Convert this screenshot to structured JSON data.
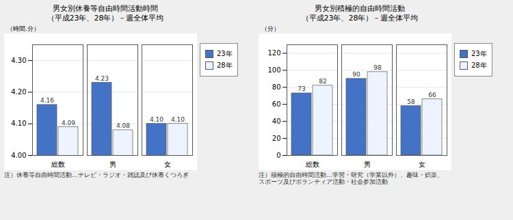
{
  "chart_data": [
    {
      "type": "bar",
      "title": "男女別休養等自由時間活動時間\n（平成23年、28年）－週全体平均",
      "ylabel": "（時間.分）",
      "categories": [
        "総数",
        "男",
        "女"
      ],
      "series": [
        {
          "name": "23年",
          "color": "#4472C4",
          "values": [
            4.16,
            4.23,
            4.1
          ],
          "value_labels": [
            "4.16",
            "4.23",
            "4.10"
          ]
        },
        {
          "name": "28年",
          "color": "#EEF4FF",
          "values": [
            4.09,
            4.08,
            4.1
          ],
          "value_labels": [
            "4.09",
            "4.08",
            "4.10"
          ]
        }
      ],
      "ylim": [
        4.0,
        4.35
      ],
      "yticks": [
        {
          "value": 4.0,
          "label": "4.00"
        },
        {
          "value": 4.1,
          "label": "4.10"
        },
        {
          "value": 4.2,
          "label": "4.20"
        },
        {
          "value": 4.3,
          "label": "4.30"
        }
      ],
      "grid": true,
      "legend": "right",
      "data_labels": true,
      "annotations": [
        "注）休養等自由時間活動…テレビ・ラジオ・雑誌及び休養くつろぎ"
      ]
    },
    {
      "type": "bar",
      "title": "男女別積極的自由時間活動\n（平成23年、28年）－週全体平均",
      "ylabel": "（分）",
      "categories": [
        "総数",
        "男",
        "女"
      ],
      "series": [
        {
          "name": "23年",
          "color": "#4472C4",
          "values": [
            73,
            90,
            58
          ]
        },
        {
          "name": "28年",
          "color": "#EEF4FF",
          "values": [
            82,
            98,
            66
          ]
        }
      ],
      "ylim": [
        0,
        130
      ],
      "yticks": [
        0,
        20,
        40,
        60,
        80,
        100,
        120
      ],
      "grid": true,
      "legend": "right",
      "data_labels": true,
      "annotations": [
        "注）積極的自由時間活動…学習・研究（学業以外）、趣味・娯楽、\nスポーツ及びボランティア活動・社会参加活動"
      ]
    }
  ]
}
